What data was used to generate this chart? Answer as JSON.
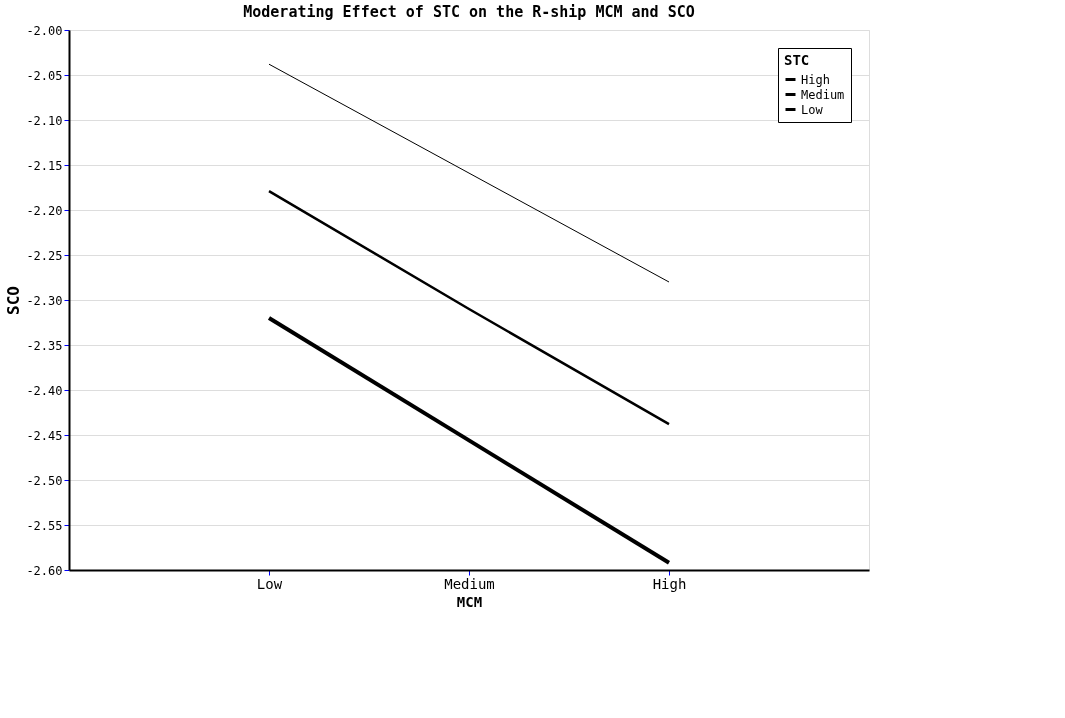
{
  "chart_data": {
    "type": "line",
    "title": "Moderating Effect of STC on the R-ship MCM and SCO",
    "xlabel": "MCM",
    "ylabel": "SCO",
    "legend_title": "STC",
    "categories": [
      "Low",
      "Medium",
      "High"
    ],
    "series": [
      {
        "name": "High",
        "color": "#000000",
        "values": [
          -2.32,
          -2.456,
          -2.592
        ]
      },
      {
        "name": "Medium",
        "color": "#000000",
        "values": [
          -2.179,
          -2.31,
          -2.438
        ]
      },
      {
        "name": "Low",
        "color": "#000000",
        "values": [
          -2.038,
          -2.159,
          -2.28
        ]
      }
    ],
    "ylim": [
      -2.6,
      -2.0
    ],
    "yticks": [
      {
        "value": -2.6,
        "label": "-2.60"
      },
      {
        "value": -2.55,
        "label": "-2.55"
      },
      {
        "value": -2.5,
        "label": "-2.50"
      },
      {
        "value": -2.45,
        "label": "-2.45"
      },
      {
        "value": -2.4,
        "label": "-2.40"
      },
      {
        "value": -2.35,
        "label": "-2.35"
      },
      {
        "value": -2.3,
        "label": "-2.30"
      },
      {
        "value": -2.25,
        "label": "-2.25"
      },
      {
        "value": -2.2,
        "label": "-2.20"
      },
      {
        "value": -2.15,
        "label": "-2.15"
      },
      {
        "value": -2.1,
        "label": "-2.10"
      },
      {
        "value": -2.05,
        "label": "-2.05"
      },
      {
        "value": -2.0,
        "label": "-2.00"
      }
    ],
    "grid": "y",
    "legend": "top right",
    "marker": "none",
    "line_style": "solid"
  }
}
